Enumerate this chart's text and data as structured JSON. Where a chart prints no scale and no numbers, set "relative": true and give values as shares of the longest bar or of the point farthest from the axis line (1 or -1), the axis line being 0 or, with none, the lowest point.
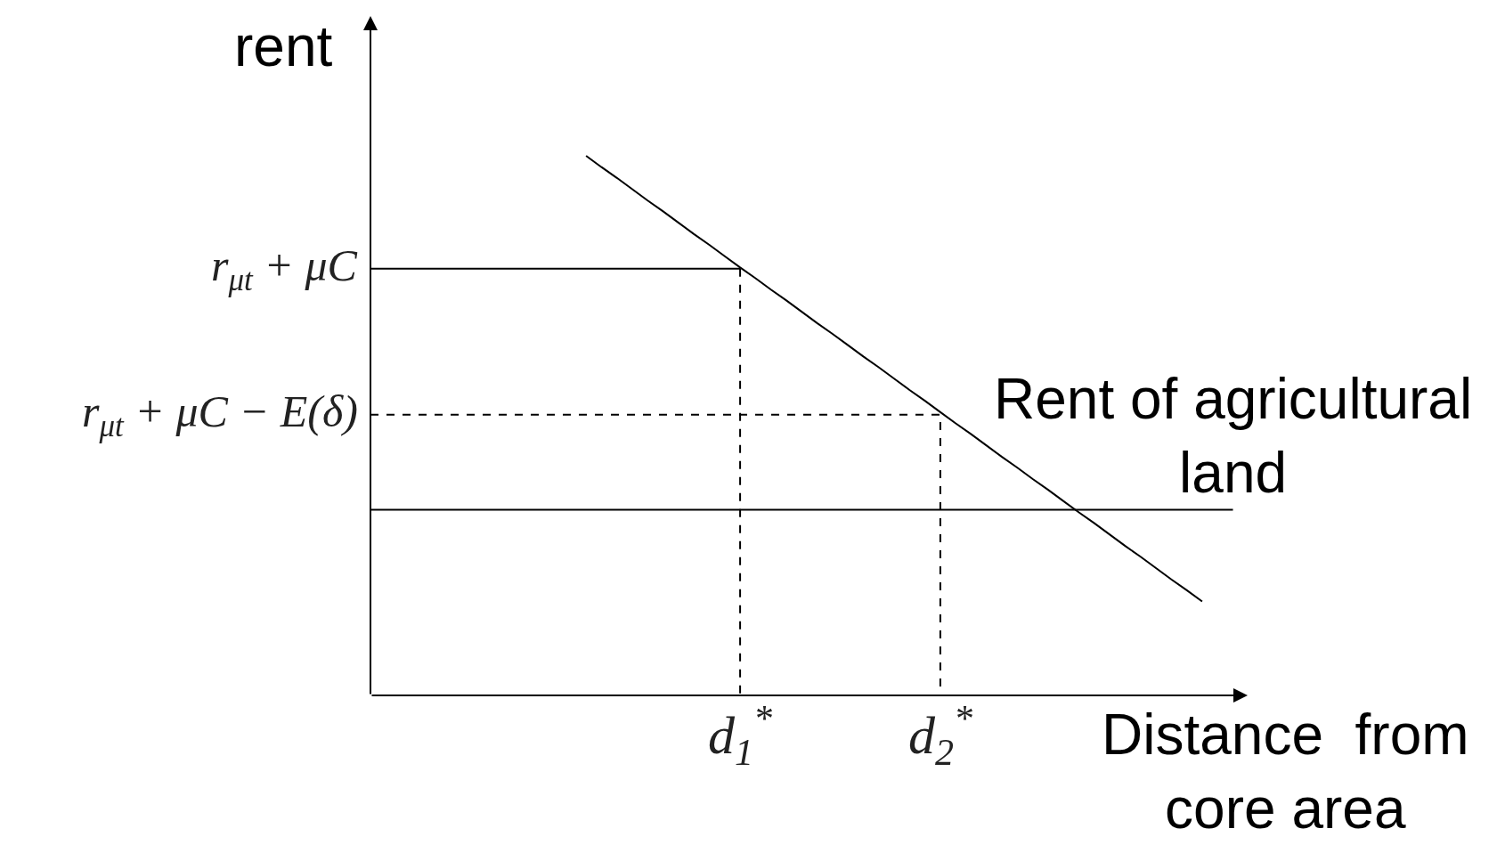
{
  "chart_data": {
    "type": "line",
    "relative": true,
    "xlabel": "Distance  from\ncore area",
    "ylabel": "rent",
    "categories": [
      null,
      null,
      null,
      null,
      null,
      null,
      null,
      null,
      null,
      null,
      null,
      null,
      null,
      null,
      null,
      null,
      null,
      null,
      null,
      null,
      null,
      null,
      null,
      null,
      "d$_{1}$$^{*}$",
      null,
      null,
      null,
      null,
      null,
      null,
      null,
      null,
      null,
      null,
      null,
      null,
      "d$_{2}$$^{*}$",
      null,
      null,
      null,
      null,
      null,
      null,
      null,
      null,
      null,
      null,
      null,
      null,
      null,
      null,
      null,
      null,
      null,
      null,
      null
    ],
    "series": [
      {
        "color": "#000000",
        "values": [
          null,
          null,
          null,
          null,
          null,
          null,
          null,
          null,
          null,
          null,
          null,
          null,
          null,
          null,
          1,
          0.979,
          0.959,
          0.938,
          0.917,
          0.897,
          0.876,
          0.855,
          0.835,
          0.814,
          0.793,
          0.773,
          0.752,
          0.732,
          0.711,
          0.69,
          0.67,
          0.649,
          0.628,
          0.608,
          0.587,
          0.566,
          0.546,
          0.525,
          0.504,
          0.484,
          0.463,
          0.442,
          0.422,
          0.401,
          0.381,
          0.36,
          0.339,
          0.319,
          0.298,
          0.277,
          0.257,
          0.236,
          0.215,
          0.195,
          0.174,
          null,
          null
        ]
      },
      {
        "name": "r$_{μt}$ + μC",
        "color": "#000000",
        "values": [
          0.791,
          0.791,
          0.791,
          0.791,
          0.791,
          0.791,
          0.791,
          0.791,
          0.791,
          0.791,
          0.791,
          0.791,
          0.791,
          0.791,
          0.791,
          0.791,
          0.791,
          0.791,
          0.791,
          0.791,
          0.791,
          0.791,
          0.791,
          0.791,
          0.791,
          null,
          null,
          null,
          null,
          null,
          null,
          null,
          null,
          null,
          null,
          null,
          null,
          null,
          null,
          null,
          null,
          null,
          null,
          null,
          null,
          null,
          null,
          null,
          null,
          null,
          null,
          null,
          null,
          null,
          null,
          null,
          null
        ]
      },
      {
        "type": "step",
        "color": "#000000",
        "line_style": "dashed",
        "values": [
          null,
          null,
          null,
          null,
          null,
          null,
          null,
          null,
          null,
          null,
          null,
          null,
          null,
          null,
          null,
          null,
          null,
          null,
          null,
          null,
          null,
          null,
          null,
          null,
          0.791,
          0,
          null,
          null,
          null,
          null,
          null,
          null,
          null,
          null,
          null,
          null,
          null,
          null,
          null,
          null,
          null,
          null,
          null,
          null,
          null,
          null,
          null,
          null,
          null,
          null,
          null,
          null,
          null,
          null,
          null,
          null,
          null
        ]
      },
      {
        "name": "r$_{μt}$ + μC − E(δ)",
        "type": "step",
        "color": "#000000",
        "line_style": "dashed",
        "values": [
          0.52,
          0.52,
          0.52,
          0.52,
          0.52,
          0.52,
          0.52,
          0.52,
          0.52,
          0.52,
          0.52,
          0.52,
          0.52,
          0.52,
          0.52,
          0.52,
          0.52,
          0.52,
          0.52,
          0.52,
          0.52,
          0.52,
          0.52,
          0.52,
          0.52,
          0.52,
          0.52,
          0.52,
          0.52,
          0.52,
          0.52,
          0.52,
          0.52,
          0.52,
          0.52,
          0.52,
          0.52,
          0.52,
          0,
          null,
          null,
          null,
          null,
          null,
          null,
          null,
          null,
          null,
          null,
          null,
          null,
          null,
          null,
          null,
          null,
          null,
          null
        ]
      },
      {
        "name": "Rent of agricultural\nland",
        "color": "#000000",
        "values": [
          0.344,
          0.344,
          0.344,
          0.344,
          0.344,
          0.344,
          0.344,
          0.344,
          0.344,
          0.344,
          0.344,
          0.344,
          0.344,
          0.344,
          0.344,
          0.344,
          0.344,
          0.344,
          0.344,
          0.344,
          0.344,
          0.344,
          0.344,
          0.344,
          0.344,
          0.344,
          0.344,
          0.344,
          0.344,
          0.344,
          0.344,
          0.344,
          0.344,
          0.344,
          0.344,
          0.344,
          0.344,
          0.344,
          0.344,
          0.344,
          0.344,
          0.344,
          0.344,
          0.344,
          0.344,
          0.344,
          0.344,
          0.344,
          0.344,
          0.344,
          0.344,
          0.344,
          0.344,
          0.344,
          0.344,
          0.344,
          0.344
        ]
      }
    ]
  }
}
